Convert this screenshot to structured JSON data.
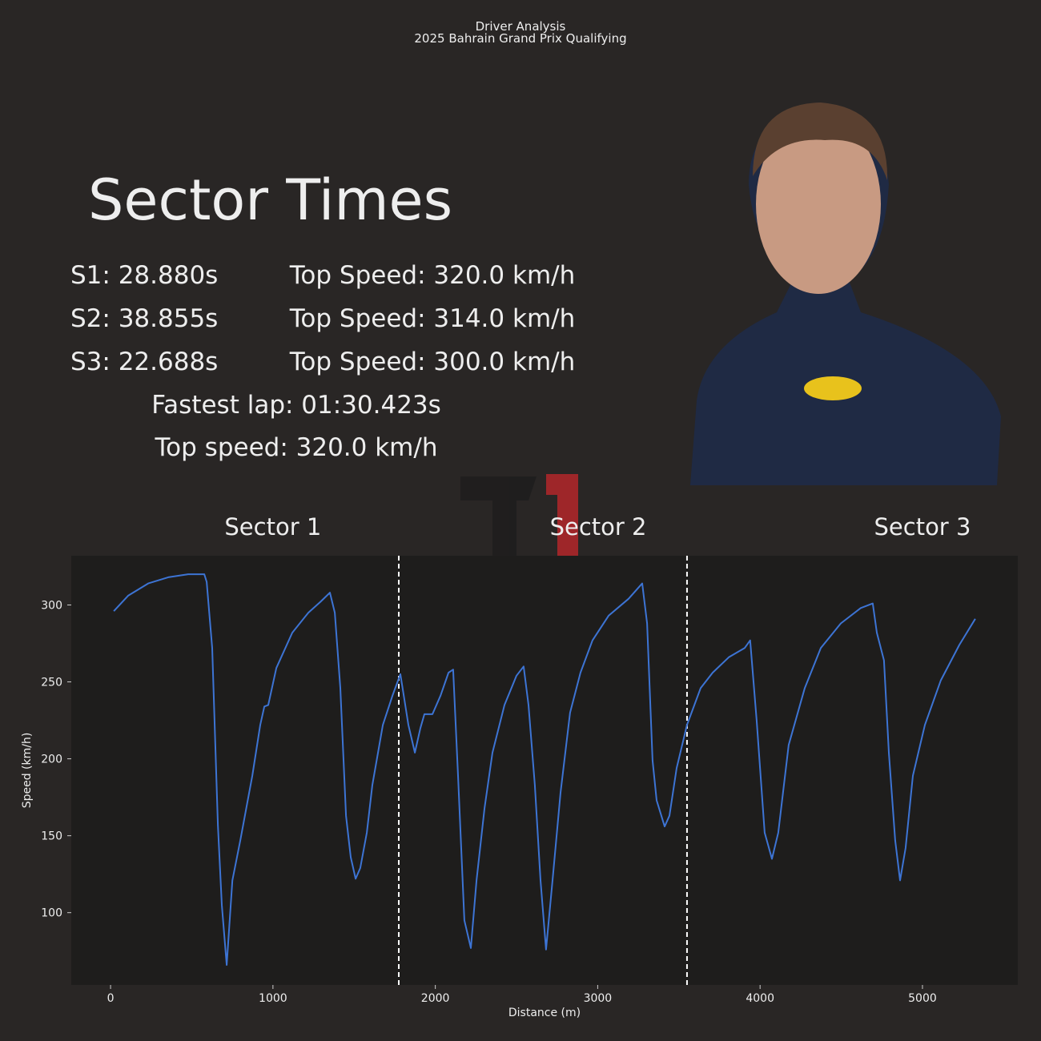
{
  "header": {
    "title": "Driver Analysis",
    "subtitle": "2025 Bahrain Grand Prix Qualifying"
  },
  "summary": {
    "heading": "Sector Times",
    "sectors": [
      {
        "time": "S1: 28.880s",
        "top_speed": "Top Speed: 320.0 km/h"
      },
      {
        "time": "S2: 38.855s",
        "top_speed": "Top Speed: 314.0 km/h"
      },
      {
        "time": "S3: 22.688s",
        "top_speed": "Top Speed: 300.0 km/h"
      }
    ],
    "fastest_lap": "Fastest lap: 01:30.423s",
    "top_speed": "Top speed: 320.0 km/h"
  },
  "chart_data": {
    "type": "line",
    "x_label": "Distance (m)",
    "y_label": "Speed (km/h)",
    "xlim": [
      -242,
      5587
    ],
    "ylim": [
      53,
      332
    ],
    "xticks": [
      0,
      1000,
      2000,
      3000,
      4000,
      5000
    ],
    "yticks": [
      100,
      150,
      200,
      250,
      300
    ],
    "sector_boundaries": [
      1775,
      3550
    ],
    "annotations": [
      {
        "text": "Sector 1",
        "x": 1000
      },
      {
        "text": "Sector 2",
        "x": 3003
      },
      {
        "text": "Sector 3",
        "x": 5000
      }
    ],
    "series": [
      {
        "color": "#3d74d4",
        "x": [
          20,
          108,
          232,
          355,
          478,
          577,
          592,
          626,
          661,
          685,
          715,
          750,
          799,
          873,
          922,
          947,
          971,
          1021,
          1119,
          1218,
          1292,
          1351,
          1381,
          1415,
          1450,
          1479,
          1509,
          1538,
          1578,
          1612,
          1677,
          1736,
          1785,
          1834,
          1874,
          1908,
          1933,
          1982,
          2032,
          2081,
          2110,
          2140,
          2179,
          2219,
          2254,
          2303,
          2352,
          2426,
          2500,
          2544,
          2574,
          2613,
          2648,
          2682,
          2722,
          2771,
          2830,
          2894,
          2968,
          3067,
          3190,
          3274,
          3304,
          3338,
          3363,
          3412,
          3442,
          3486,
          3550,
          3634,
          3708,
          3807,
          3905,
          3939,
          3979,
          4028,
          4073,
          4112,
          4176,
          4275,
          4374,
          4497,
          4620,
          4694,
          4719,
          4763,
          4793,
          4832,
          4862,
          4896,
          4941,
          5015,
          5113,
          5227,
          5325
        ],
        "values": [
          296,
          306,
          314,
          318,
          320,
          320,
          315,
          272,
          157,
          105,
          66,
          121,
          147,
          189,
          222,
          234,
          235,
          259,
          282,
          295,
          302,
          308,
          295,
          246,
          163,
          136,
          122,
          129,
          152,
          183,
          222,
          241,
          255,
          222,
          204,
          220,
          229,
          229,
          241,
          256,
          258,
          189,
          95,
          77,
          121,
          168,
          204,
          235,
          254,
          260,
          235,
          183,
          121,
          76,
          121,
          178,
          230,
          256,
          277,
          293,
          304,
          314,
          288,
          199,
          173,
          156,
          163,
          194,
          222,
          246,
          256,
          266,
          272,
          277,
          225,
          152,
          135,
          152,
          209,
          246,
          272,
          288,
          298,
          301,
          282,
          264,
          204,
          147,
          121,
          142,
          189,
          222,
          251,
          274,
          291
        ]
      }
    ]
  }
}
